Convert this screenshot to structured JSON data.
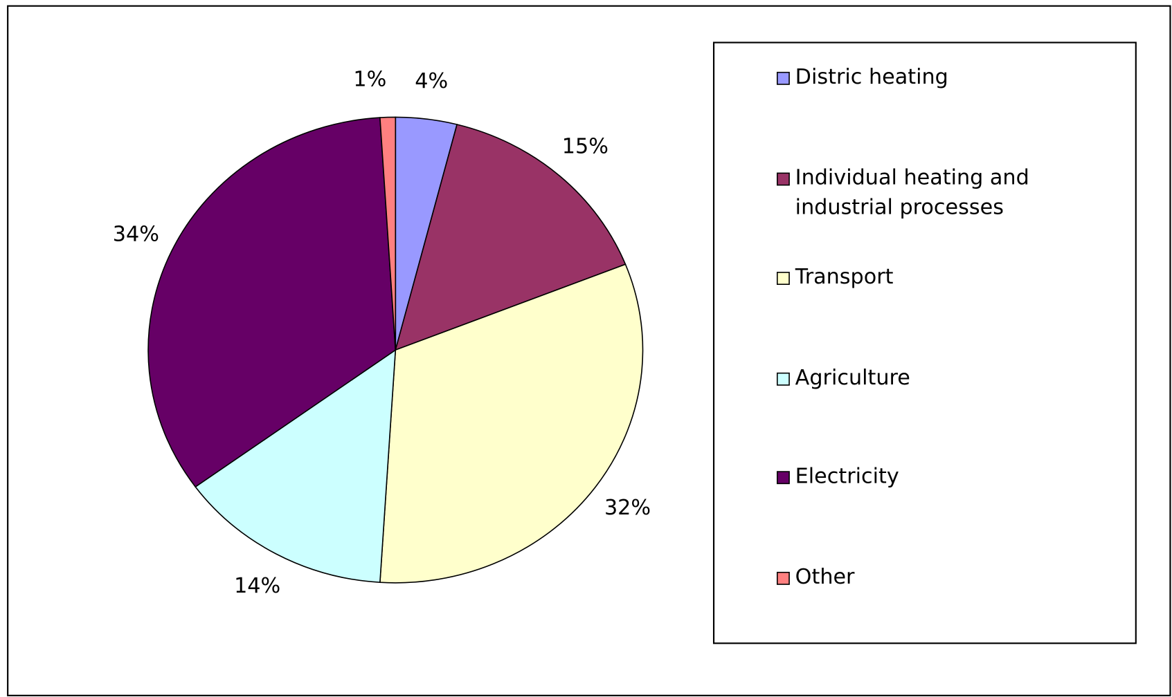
{
  "chart_data": {
    "type": "pie",
    "categories": [
      "Distric heating",
      "Individual heating and industrial processes",
      "Transport",
      "Agriculture",
      "Electricity",
      "Other"
    ],
    "values": [
      4,
      15,
      32,
      14,
      34,
      1
    ],
    "value_labels": [
      "4%",
      "15%",
      "32%",
      "14%",
      "34%",
      "1%"
    ],
    "colors": [
      "#9999ff",
      "#993366",
      "#ffffcc",
      "#ccffff",
      "#660066",
      "#ff8080"
    ],
    "legend": "right"
  }
}
